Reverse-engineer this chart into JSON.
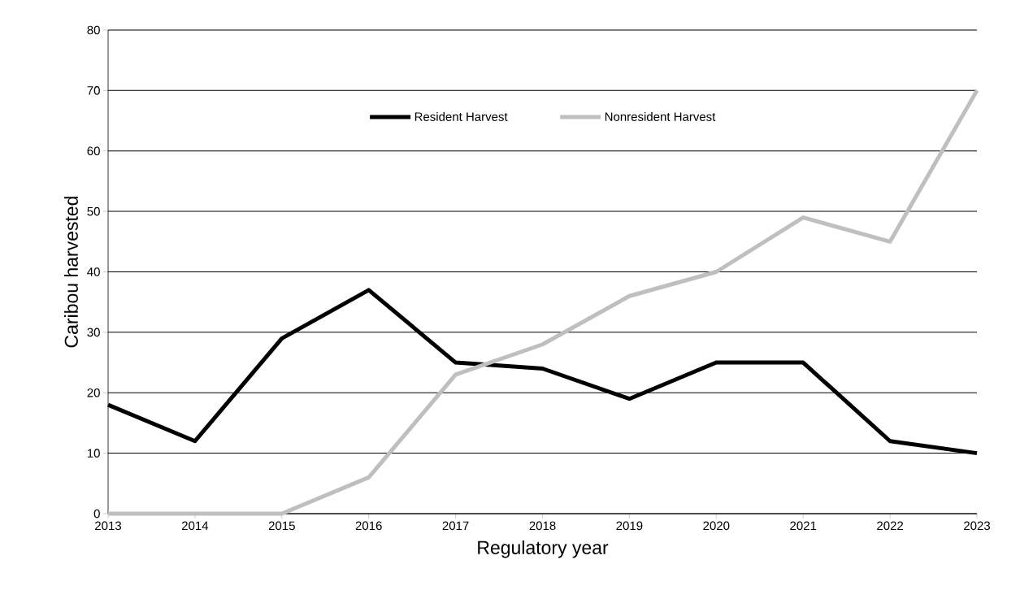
{
  "chart_data": {
    "type": "line",
    "xlabel": "Regulatory year",
    "ylabel": "Caribou harvested",
    "x": [
      2013,
      2014,
      2015,
      2016,
      2017,
      2018,
      2019,
      2020,
      2021,
      2022,
      2023
    ],
    "series": [
      {
        "name": "Resident Harvest",
        "color": "#000000",
        "values": [
          18,
          12,
          29,
          37,
          25,
          24,
          19,
          25,
          25,
          12,
          10
        ]
      },
      {
        "name": "Nonresident Harvest",
        "color": "#bfbfbf",
        "values": [
          0,
          0,
          0,
          6,
          23,
          28,
          36,
          40,
          49,
          45,
          70
        ]
      }
    ],
    "xlim": [
      2013,
      2023
    ],
    "xticks": [
      2013,
      2014,
      2015,
      2016,
      2017,
      2018,
      2019,
      2020,
      2021,
      2022,
      2023
    ],
    "ylim": [
      0,
      80
    ],
    "yticks": [
      0,
      10,
      20,
      30,
      40,
      50,
      60,
      70,
      80
    ],
    "grid": "y",
    "legend": "top",
    "marker": "none",
    "line_style": "solid"
  }
}
